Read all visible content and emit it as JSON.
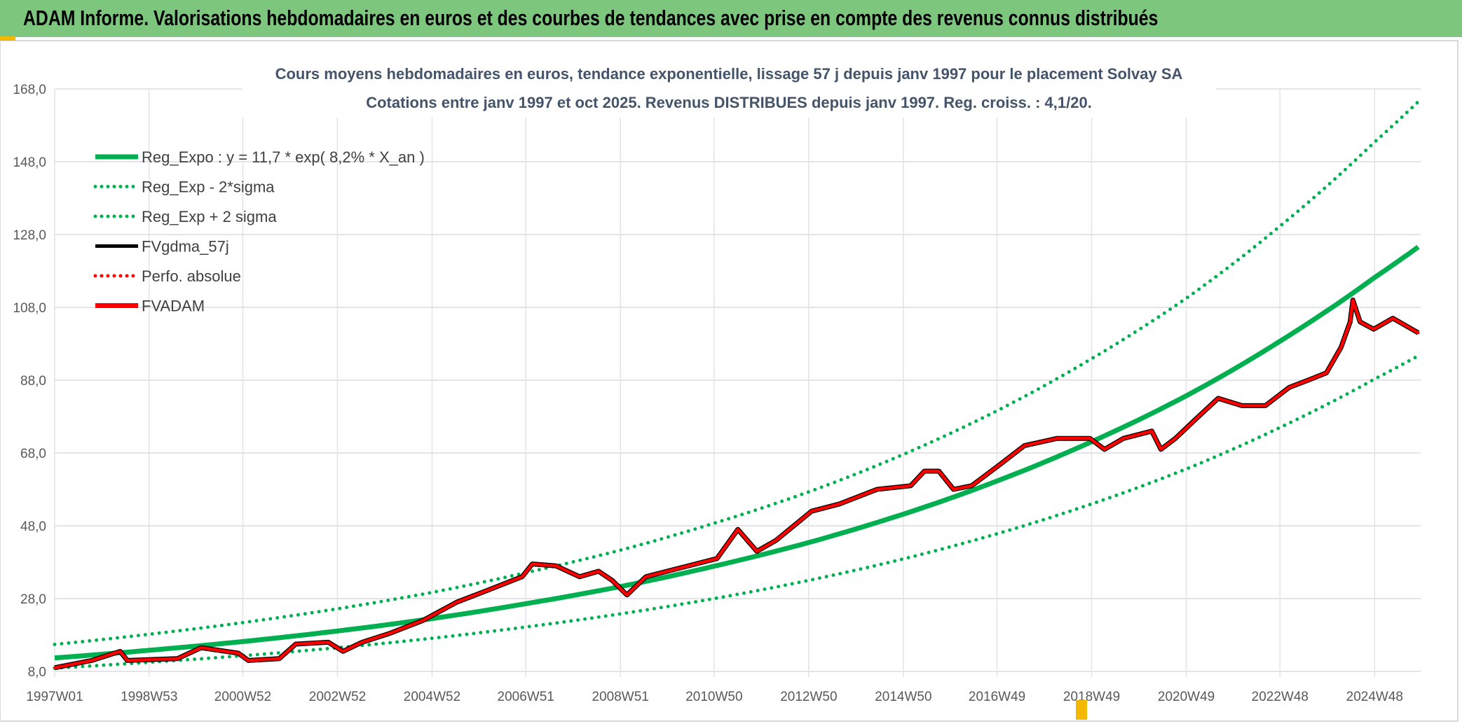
{
  "header": {
    "title": "ADAM Informe. Valorisations hebdomadaires en euros et des courbes de tendances avec prise en compte des revenus connus distribués"
  },
  "chart_data": {
    "type": "line",
    "title": "Cours moyens hebdomadaires en euros, tendance exponentielle, lissage 57 j depuis janv 1997 pour le placement Solvay SA",
    "subtitle": "Cotations entre janv 1997 et oct 2025. Revenus DISTRIBUES depuis janv 1997. Reg. croiss. : 4,1/20.",
    "xlabel": "",
    "ylabel": "",
    "ylim": [
      8,
      168
    ],
    "yticks": [
      "8,0",
      "28,0",
      "48,0",
      "68,0",
      "88,0",
      "108,0",
      "128,0",
      "148,0",
      "168,0"
    ],
    "ytick_values": [
      8,
      28,
      48,
      68,
      88,
      108,
      128,
      148,
      168
    ],
    "xticks": [
      "1997W01",
      "1998W53",
      "2000W52",
      "2002W52",
      "2004W52",
      "2006W51",
      "2008W51",
      "2010W50",
      "2012W50",
      "2014W50",
      "2016W49",
      "2018W49",
      "2020W49",
      "2022W48",
      "2024W48"
    ],
    "xlim": [
      "1997W01",
      "2025W44"
    ],
    "grid": true,
    "legend_position": "top-left",
    "legend": [
      {
        "label": "Reg_Expo : y = 11,7 * exp( 8,2% *  X_an )",
        "color": "#00b050",
        "style": "solid-thick"
      },
      {
        "label": "Reg_Exp - 2*sigma",
        "color": "#00b050",
        "style": "dotted"
      },
      {
        "label": "Reg_Exp + 2 sigma",
        "color": "#00b050",
        "style": "dotted"
      },
      {
        "label": "FVgdma_57j",
        "color": "#000000",
        "style": "solid"
      },
      {
        "label": "Perfo. absolue",
        "color": "#ff0000",
        "style": "dotted"
      },
      {
        "label": "FVADAM",
        "color": "#ff0000",
        "style": "solid-thick"
      }
    ],
    "trend_x": [
      "1997W01",
      "1998W53",
      "2000W52",
      "2002W52",
      "2004W52",
      "2006W51",
      "2008W51",
      "2010W50",
      "2012W50",
      "2014W50",
      "2016W49",
      "2018W49",
      "2020W49",
      "2022W48",
      "2024W48",
      "2025W44"
    ],
    "series": [
      {
        "name": "Reg_Expo : y = 11,7 * exp( 8,2% *  X_an )",
        "values": [
          11.7,
          13.8,
          16.2,
          19.1,
          22.5,
          26.6,
          31.3,
          36.9,
          43.4,
          51.2,
          60.3,
          71.1,
          83.7,
          98.7,
          116.2,
          124.6
        ]
      },
      {
        "name": "Reg_Exp - 2*sigma",
        "values": [
          8.9,
          10.5,
          12.3,
          14.5,
          17.1,
          20.2,
          23.8,
          28.0,
          33.0,
          38.9,
          45.8,
          54.0,
          63.6,
          75.0,
          88.3,
          94.7
        ]
      },
      {
        "name": "Reg_Exp + 2 sigma",
        "values": [
          15.4,
          18.2,
          21.4,
          25.2,
          29.7,
          35.1,
          41.3,
          48.7,
          57.3,
          67.6,
          79.6,
          93.9,
          110.5,
          130.3,
          153.4,
          164.5
        ]
      },
      {
        "name": "FVADAM",
        "points": [
          [
            "1997W01",
            9
          ],
          [
            "1997W42",
            11
          ],
          [
            "1998W21",
            13.5
          ],
          [
            "1998W29",
            11
          ],
          [
            "1999W32",
            11.5
          ],
          [
            "2000W06",
            14.5
          ],
          [
            "2000W47",
            13
          ],
          [
            "2001W06",
            11
          ],
          [
            "2001W40",
            11.5
          ],
          [
            "2002W06",
            15.5
          ],
          [
            "2002W42",
            16
          ],
          [
            "2003W06",
            13.5
          ],
          [
            "2003W27",
            16
          ],
          [
            "2004W06",
            18.5
          ],
          [
            "2004W42",
            22
          ],
          [
            "2005W27",
            27
          ],
          [
            "2006W06",
            30
          ],
          [
            "2006W47",
            34
          ],
          [
            "2007W06",
            37.5
          ],
          [
            "2007W32",
            37
          ],
          [
            "2008W06",
            34
          ],
          [
            "2008W27",
            35.5
          ],
          [
            "2008W42",
            33
          ],
          [
            "2009W06",
            29
          ],
          [
            "2009W27",
            34
          ],
          [
            "2010W06",
            36
          ],
          [
            "2011W01",
            39
          ],
          [
            "2011W24",
            47
          ],
          [
            "2011W45",
            41
          ],
          [
            "2012W14",
            44
          ],
          [
            "2013W01",
            52
          ],
          [
            "2013W32",
            54
          ],
          [
            "2014W21",
            58
          ],
          [
            "2015W06",
            59
          ],
          [
            "2015W21",
            63
          ],
          [
            "2015W37",
            63
          ],
          [
            "2016W01",
            58
          ],
          [
            "2016W21",
            59
          ],
          [
            "2017W01",
            65
          ],
          [
            "2017W27",
            70
          ],
          [
            "2018W11",
            72
          ],
          [
            "2018W47",
            72
          ],
          [
            "2019W11",
            69
          ],
          [
            "2019W32",
            72
          ],
          [
            "2020W11",
            74
          ],
          [
            "2020W21",
            69
          ],
          [
            "2020W37",
            72
          ],
          [
            "2021W06",
            77
          ],
          [
            "2021W32",
            83
          ],
          [
            "2022W06",
            81
          ],
          [
            "2022W32",
            81
          ],
          [
            "2023W06",
            86
          ],
          [
            "2023W27",
            88
          ],
          [
            "2023W47",
            90
          ],
          [
            "2024W11",
            97
          ],
          [
            "2024W21",
            104
          ],
          [
            "2024W24",
            110
          ],
          [
            "2024W32",
            104
          ],
          [
            "2024W47",
            102
          ],
          [
            "2025W16",
            105
          ],
          [
            "2025W44",
            101
          ]
        ]
      },
      {
        "name": "FVgdma_57j",
        "same_as": "FVADAM"
      },
      {
        "name": "Perfo. absolue",
        "hidden_under": "FVADAM"
      }
    ]
  }
}
